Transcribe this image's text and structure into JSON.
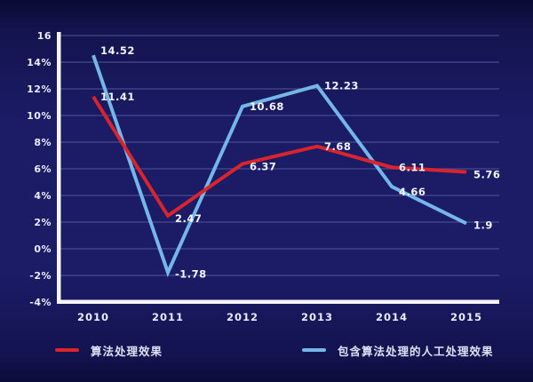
{
  "colors": {
    "background": "#1b1b66",
    "grid": "#565b9e",
    "axis": "#f4f4f9",
    "tick_text": "#e9ecf7",
    "data_label_text": "#f2f4fb",
    "red_series": "#d8242c",
    "blue_series": "#74b6e8"
  },
  "chart_data": {
    "type": "line",
    "title": "",
    "xlabel": "",
    "ylabel": "",
    "ylim": [
      -4,
      16
    ],
    "grid": true,
    "legend_position": "bottom",
    "categories": [
      "2010",
      "2011",
      "2012",
      "2013",
      "2014",
      "2015"
    ],
    "y_ticks": [
      {
        "value": 16,
        "label": "16"
      },
      {
        "value": 14,
        "label": "14%"
      },
      {
        "value": 12,
        "label": "12%"
      },
      {
        "value": 10,
        "label": "10%"
      },
      {
        "value": 8,
        "label": "8%"
      },
      {
        "value": 6,
        "label": "6%"
      },
      {
        "value": 4,
        "label": "4%"
      },
      {
        "value": 2,
        "label": "2%"
      },
      {
        "value": 0,
        "label": "0%"
      },
      {
        "value": -2,
        "label": "-2%"
      },
      {
        "value": -4,
        "label": "-4%"
      }
    ],
    "series": [
      {
        "name": "算法处理效果",
        "color": "#d8242c",
        "values": [
          11.41,
          2.47,
          6.37,
          7.68,
          6.11,
          5.76
        ]
      },
      {
        "name": "包含算法处理的人工处理效果",
        "color": "#74b6e8",
        "values": [
          14.52,
          -1.78,
          10.68,
          12.23,
          4.66,
          1.9
        ]
      }
    ]
  }
}
